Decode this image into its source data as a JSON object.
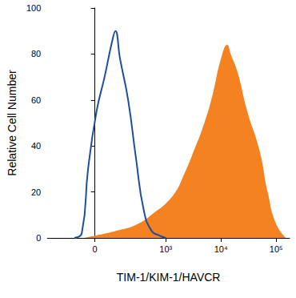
{
  "chart_data": {
    "type": "histogram",
    "x_label": "TIM-1/KIM-1/HAVCR",
    "y_label": "Relative Cell Number",
    "xlim": [
      -370,
      175000
    ],
    "xticks": [
      0,
      {
        "value": 1000,
        "label": "10³"
      },
      {
        "value": 10000,
        "label": "10⁴"
      },
      {
        "value": 100000,
        "label": "10⁵"
      }
    ],
    "ylim": [
      0,
      100
    ],
    "yticks": [
      0,
      20,
      40,
      60,
      80,
      100
    ],
    "grid": false,
    "series": [
      {
        "type": "line",
        "color": "#1f4e9c",
        "x": [
          -100,
          -60,
          -30,
          7,
          43,
          80,
          100,
          130,
          195,
          278,
          393,
          551,
          770,
          1000
        ],
        "values": [
          0,
          2,
          30,
          55,
          70,
          85,
          90,
          78,
          60,
          35,
          12,
          3,
          1,
          0
        ]
      },
      {
        "type": "area",
        "color": "#f58220",
        "x": [
          -50,
          0,
          100,
          300,
          700,
          1000,
          1500,
          2000,
          3000,
          5000,
          7000,
          10000,
          13000,
          15000,
          20000,
          30000,
          50000,
          70000,
          100000,
          150000
        ],
        "values": [
          0,
          1,
          3,
          6,
          12,
          15,
          20,
          26,
          36,
          50,
          62,
          78,
          84,
          80,
          72,
          55,
          38,
          20,
          6,
          0
        ]
      }
    ]
  }
}
